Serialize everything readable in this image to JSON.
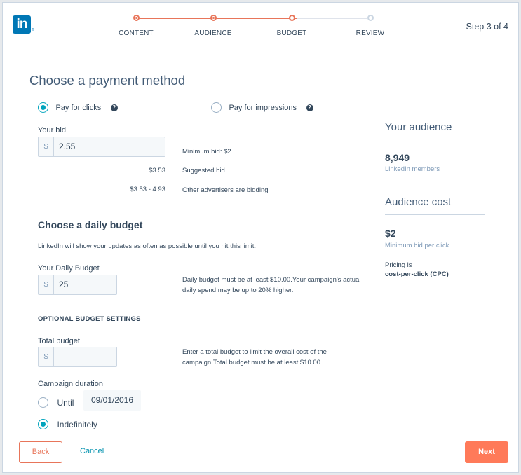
{
  "header": {
    "logo_text": "in",
    "logo_reg": "®",
    "steps": [
      {
        "label": "CONTENT",
        "state": "done"
      },
      {
        "label": "AUDIENCE",
        "state": "done"
      },
      {
        "label": "BUDGET",
        "state": "current"
      },
      {
        "label": "REVIEW",
        "state": "todo"
      }
    ],
    "step_count": "Step 3 of 4"
  },
  "payment": {
    "title": "Choose a payment method",
    "options": [
      {
        "label": "Pay for clicks",
        "checked": true
      },
      {
        "label": "Pay for impressions",
        "checked": false
      }
    ],
    "help_glyph": "?",
    "bid_label": "Your bid",
    "currency": "$",
    "bid_value": "2.55",
    "min_bid": "Minimum bid: $2",
    "suggested_value": "$3.53",
    "suggested_label": "Suggested bid",
    "range_value": "$3.53 - 4.93",
    "range_label": "Other advertisers are bidding"
  },
  "budget": {
    "title": "Choose a daily budget",
    "description": "LinkedIn will show your updates as often as possible until you hit this limit.",
    "daily_label": "Your Daily Budget",
    "daily_value": "25",
    "daily_note_1": "Daily budget must be at least $10.00.Your campaign's actual",
    "daily_note_2": "daily spend may be up to 20% higher.",
    "optional_title": "OPTIONAL BUDGET SETTINGS",
    "total_label": "Total budget",
    "total_value": "",
    "total_note_1": "Enter a total budget to limit the overall cost of the",
    "total_note_2": "campaign.Total budget must be at least $10.00.",
    "duration_label": "Campaign duration",
    "until_label": "Until",
    "until_date": "09/01/2016",
    "indefinitely_label": "Indefinitely",
    "duration_selected": "Indefinitely"
  },
  "audience": {
    "title": "Your audience",
    "count": "8,949",
    "count_label": "LinkedIn members",
    "cost_title": "Audience cost",
    "cost_value": "$2",
    "cost_label": "Minimum bid per click",
    "pricing_label": "Pricing is",
    "pricing_value": "cost-per-click (CPC)"
  },
  "footer": {
    "back": "Back",
    "cancel": "Cancel",
    "next": "Next"
  },
  "colors": {
    "accent": "#ff7a59",
    "progress": "#e8755a",
    "radio": "#00a4bd",
    "linkedin": "#0077b5",
    "link": "#0091ae"
  }
}
